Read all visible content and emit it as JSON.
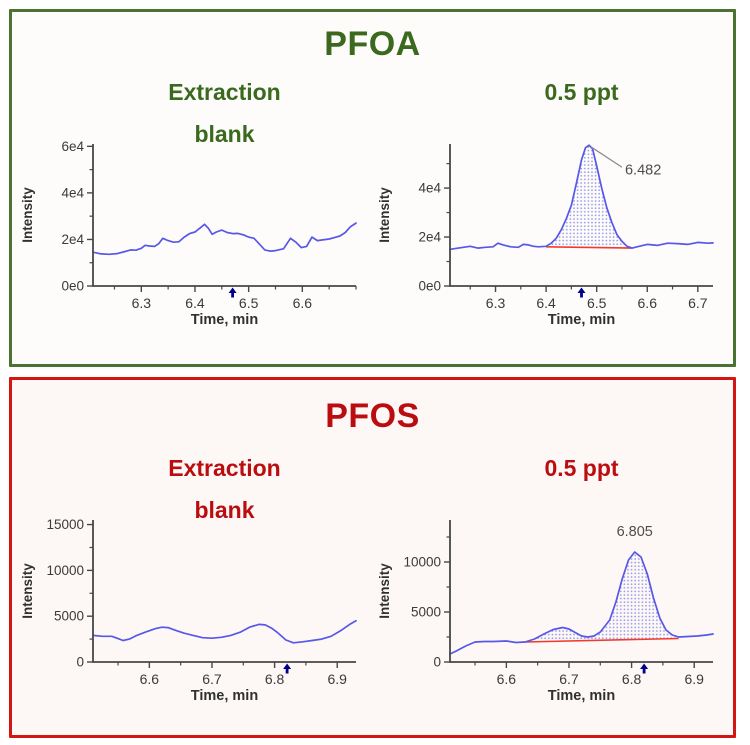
{
  "colors": {
    "line": "#5757e8",
    "fill_dot": "#989ae9",
    "baseline": "#f23a2c",
    "axis": "#474747",
    "tick_text": "#3a3a3a",
    "axis_title": "#303030",
    "marker": "#00008b",
    "leader": "#8c8c8c",
    "peak_label": "#4d4d4d",
    "page_bg": "#ffffff"
  },
  "panels": [
    {
      "title": "PFOA",
      "accent": "#3b691d",
      "border": "#4a7230",
      "bg": "#fdfcfa",
      "chart_indices": [
        0,
        1
      ]
    },
    {
      "title": "PFOS",
      "accent": "#bb0d10",
      "border": "#d31614",
      "bg": "#fdf8f6",
      "chart_indices": [
        2,
        3
      ]
    }
  ],
  "chart_data": [
    {
      "id": "pfoa-extraction-blank",
      "type": "line",
      "subtitle_lines": [
        "Extraction",
        "blank"
      ],
      "xlabel": "Time, min",
      "ylabel": "Intensity",
      "xlim": [
        6.21,
        6.7
      ],
      "ymax": 61000,
      "xtick_vals": [
        6.3,
        6.4,
        6.5,
        6.6
      ],
      "xtick_labels": [
        "6.3",
        "6.4",
        "6.5",
        "6.6"
      ],
      "ytick_vals": [
        0,
        20000,
        40000,
        60000
      ],
      "ytick_labels": [
        "0e0",
        "2e4",
        "4e4",
        "6e4"
      ],
      "yminor": [
        10000,
        30000,
        50000
      ],
      "marker_x": 6.47,
      "peak": null,
      "x": [
        6.21,
        6.225,
        6.24,
        6.255,
        6.27,
        6.28,
        6.29,
        6.3,
        6.307,
        6.315,
        6.325,
        6.333,
        6.34,
        6.35,
        6.36,
        6.37,
        6.38,
        6.39,
        6.4,
        6.41,
        6.418,
        6.425,
        6.432,
        6.44,
        6.45,
        6.46,
        6.47,
        6.48,
        6.49,
        6.5,
        6.51,
        6.52,
        6.53,
        6.54,
        6.55,
        6.565,
        6.578,
        6.588,
        6.598,
        6.608,
        6.618,
        6.628,
        6.638,
        6.65,
        6.66,
        6.67,
        6.68,
        6.69,
        6.7
      ],
      "y": [
        14500,
        13800,
        13600,
        13900,
        14800,
        15500,
        15400,
        16200,
        17500,
        17200,
        17000,
        18300,
        20500,
        19500,
        18800,
        19000,
        21000,
        22500,
        23200,
        25000,
        26500,
        24800,
        22200,
        23200,
        24000,
        23000,
        22500,
        22600,
        22000,
        21000,
        20500,
        18000,
        15500,
        15000,
        15200,
        16000,
        20500,
        18800,
        16500,
        17000,
        21000,
        19500,
        19800,
        20200,
        20800,
        21500,
        23000,
        25500,
        27000
      ]
    },
    {
      "id": "pfoa-05ppt",
      "type": "line",
      "subtitle_lines": [
        "0.5 ppt"
      ],
      "xlabel": "Time, min",
      "ylabel": "Intensity",
      "xlim": [
        6.21,
        6.73
      ],
      "ymax": 58000,
      "xtick_vals": [
        6.3,
        6.4,
        6.5,
        6.6,
        6.7
      ],
      "xtick_labels": [
        "6.3",
        "6.4",
        "6.5",
        "6.6",
        "6.7"
      ],
      "ytick_vals": [
        0,
        20000,
        40000
      ],
      "ytick_labels": [
        "0e0",
        "2e4",
        "4e4"
      ],
      "yminor": [
        10000,
        30000,
        50000
      ],
      "marker_x": 6.47,
      "peak": {
        "label": "6.482",
        "region": [
          6.4,
          6.57
        ],
        "baseline": [
          16000,
          15500
        ],
        "label_pos": [
          6.556,
          45500
        ],
        "label_anchor": "start",
        "leader": [
          [
            6.489,
            56800
          ],
          [
            6.55,
            48500
          ]
        ]
      },
      "x": [
        6.21,
        6.23,
        6.25,
        6.265,
        6.28,
        6.295,
        6.305,
        6.315,
        6.33,
        6.345,
        6.355,
        6.365,
        6.375,
        6.385,
        6.4,
        6.41,
        6.42,
        6.43,
        6.44,
        6.45,
        6.46,
        6.47,
        6.478,
        6.485,
        6.492,
        6.5,
        6.51,
        6.52,
        6.53,
        6.54,
        6.55,
        6.56,
        6.57,
        6.58,
        6.6,
        6.62,
        6.64,
        6.66,
        6.68,
        6.7,
        6.72,
        6.73
      ],
      "y": [
        15000,
        15600,
        16200,
        15500,
        15800,
        16000,
        17500,
        16800,
        16000,
        15800,
        17000,
        16800,
        16200,
        16000,
        16200,
        17500,
        19500,
        23000,
        27500,
        33000,
        42000,
        51500,
        56500,
        57500,
        56000,
        49000,
        40000,
        32000,
        26000,
        21000,
        18200,
        16200,
        15500,
        16000,
        17000,
        16600,
        17500,
        17300,
        17000,
        17800,
        17500,
        17600
      ]
    },
    {
      "id": "pfos-extraction-blank",
      "type": "line",
      "subtitle_lines": [
        "Extraction",
        "blank"
      ],
      "xlabel": "Time, min",
      "ylabel": "Intensity",
      "xlim": [
        6.51,
        6.93
      ],
      "ymax": 15500,
      "xtick_vals": [
        6.6,
        6.7,
        6.8,
        6.9
      ],
      "xtick_labels": [
        "6.6",
        "6.7",
        "6.8",
        "6.9"
      ],
      "ytick_vals": [
        0,
        5000,
        10000,
        15000
      ],
      "ytick_labels": [
        "0",
        "5000",
        "10000",
        "15000"
      ],
      "yminor": [
        2500,
        7500,
        12500
      ],
      "marker_x": 6.82,
      "peak": null,
      "x": [
        6.51,
        6.525,
        6.54,
        6.55,
        6.558,
        6.568,
        6.58,
        6.595,
        6.61,
        6.62,
        6.63,
        6.64,
        6.655,
        6.67,
        6.685,
        6.7,
        6.715,
        6.73,
        6.745,
        6.76,
        6.775,
        6.785,
        6.795,
        6.805,
        6.818,
        6.83,
        6.845,
        6.86,
        6.875,
        6.89,
        6.905,
        6.92,
        6.93
      ],
      "y": [
        2900,
        2800,
        2800,
        2550,
        2350,
        2500,
        2900,
        3300,
        3650,
        3800,
        3750,
        3500,
        3150,
        2900,
        2650,
        2600,
        2700,
        2900,
        3250,
        3800,
        4100,
        4050,
        3700,
        3200,
        2400,
        2100,
        2200,
        2350,
        2500,
        2800,
        3400,
        4100,
        4500
      ]
    },
    {
      "id": "pfos-05ppt",
      "type": "line",
      "subtitle_lines": [
        "0.5 ppt"
      ],
      "xlabel": "Time, min",
      "ylabel": "Intensity",
      "xlim": [
        6.51,
        6.93
      ],
      "ymax": 14200,
      "xtick_vals": [
        6.6,
        6.7,
        6.8,
        6.9
      ],
      "xtick_labels": [
        "6.6",
        "6.7",
        "6.8",
        "6.9"
      ],
      "ytick_vals": [
        0,
        5000,
        10000
      ],
      "ytick_labels": [
        "0",
        "5000",
        "10000"
      ],
      "yminor": [
        2500,
        7500,
        12500
      ],
      "marker_x": 6.82,
      "peak": {
        "label": "6.805",
        "region": [
          6.63,
          6.875
        ],
        "baseline": [
          2000,
          2350
        ],
        "label_pos": [
          6.805,
          12600
        ],
        "label_anchor": "middle",
        "leader": null
      },
      "x": [
        6.51,
        6.52,
        6.535,
        6.55,
        6.565,
        6.58,
        6.6,
        6.615,
        6.63,
        6.645,
        6.66,
        6.675,
        6.69,
        6.7,
        6.71,
        6.72,
        6.73,
        6.74,
        6.75,
        6.765,
        6.775,
        6.785,
        6.795,
        6.805,
        6.815,
        6.825,
        6.835,
        6.845,
        6.855,
        6.865,
        6.875,
        6.89,
        6.905,
        6.92,
        6.93
      ],
      "y": [
        800,
        1100,
        1600,
        2000,
        2050,
        2050,
        2100,
        1950,
        2000,
        2300,
        2800,
        3250,
        3450,
        3300,
        2950,
        2600,
        2500,
        2600,
        3000,
        4200,
        6000,
        8300,
        10200,
        11000,
        10500,
        8800,
        6400,
        4400,
        3200,
        2700,
        2500,
        2550,
        2600,
        2700,
        2800
      ]
    }
  ]
}
